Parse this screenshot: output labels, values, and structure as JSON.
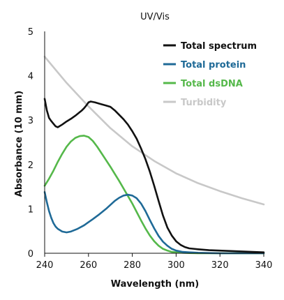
{
  "chart_data": {
    "type": "line",
    "title": "UV/Vis",
    "xlabel": "Wavelength (nm)",
    "ylabel": "Absorbance (10 mm)",
    "xlim": [
      240,
      340
    ],
    "ylim": [
      0,
      5
    ],
    "xticks": [
      240,
      260,
      280,
      300,
      320,
      340
    ],
    "yticks": [
      0,
      1,
      2,
      3,
      4,
      5
    ],
    "grid": false,
    "legend_position": "top-right",
    "series": [
      {
        "name": "Total spectrum",
        "color": "#111111",
        "x": [
          240,
          241,
          242,
          243,
          244,
          245,
          246,
          248,
          250,
          252,
          254,
          256,
          257,
          258,
          259,
          260,
          261,
          262,
          263,
          265,
          268,
          270,
          272,
          274,
          276,
          278,
          280,
          282,
          284,
          286,
          288,
          290,
          292,
          294,
          296,
          298,
          300,
          302,
          304,
          306,
          308,
          310,
          315,
          320,
          325,
          330,
          335,
          340
        ],
        "y": [
          3.48,
          3.22,
          3.05,
          2.98,
          2.92,
          2.86,
          2.84,
          2.9,
          2.97,
          3.03,
          3.1,
          3.18,
          3.22,
          3.27,
          3.33,
          3.4,
          3.42,
          3.41,
          3.4,
          3.37,
          3.33,
          3.3,
          3.22,
          3.12,
          3.02,
          2.9,
          2.75,
          2.58,
          2.36,
          2.12,
          1.84,
          1.52,
          1.18,
          0.85,
          0.58,
          0.4,
          0.27,
          0.19,
          0.14,
          0.11,
          0.1,
          0.09,
          0.07,
          0.06,
          0.05,
          0.04,
          0.03,
          0.02
        ]
      },
      {
        "name": "Total protein",
        "color": "#1f6a97",
        "x": [
          240,
          241,
          242,
          243,
          244,
          245,
          246,
          248,
          250,
          252,
          255,
          258,
          260,
          262,
          265,
          268,
          270,
          272,
          274,
          276,
          278,
          280,
          282,
          284,
          286,
          288,
          290,
          292,
          294,
          296,
          298,
          300,
          303,
          306,
          310,
          315,
          320,
          330,
          340
        ],
        "y": [
          1.38,
          1.15,
          0.95,
          0.8,
          0.68,
          0.6,
          0.55,
          0.49,
          0.47,
          0.49,
          0.55,
          0.63,
          0.7,
          0.77,
          0.88,
          1.0,
          1.09,
          1.18,
          1.25,
          1.3,
          1.32,
          1.3,
          1.24,
          1.12,
          0.95,
          0.75,
          0.56,
          0.39,
          0.26,
          0.17,
          0.1,
          0.06,
          0.03,
          0.02,
          0.01,
          0.005,
          0.0,
          0.0,
          0.0
        ]
      },
      {
        "name": "Total dsDNA",
        "color": "#55b84a",
        "x": [
          240,
          242,
          244,
          246,
          248,
          250,
          252,
          254,
          256,
          258,
          260,
          262,
          264,
          266,
          268,
          270,
          272,
          274,
          276,
          278,
          280,
          282,
          284,
          286,
          288,
          290,
          292,
          294,
          296,
          298,
          300,
          303,
          306,
          310,
          315,
          320,
          330,
          340
        ],
        "y": [
          1.52,
          1.68,
          1.86,
          2.06,
          2.24,
          2.4,
          2.52,
          2.6,
          2.64,
          2.65,
          2.62,
          2.53,
          2.4,
          2.25,
          2.1,
          1.95,
          1.79,
          1.63,
          1.46,
          1.29,
          1.12,
          0.93,
          0.74,
          0.56,
          0.4,
          0.27,
          0.17,
          0.1,
          0.06,
          0.03,
          0.02,
          0.01,
          0.005,
          0.0,
          0.0,
          0.0,
          0.0,
          0.0
        ]
      },
      {
        "name": "Turbidity",
        "color": "#c8c8c8",
        "x": [
          240,
          250,
          260,
          270,
          280,
          290,
          300,
          310,
          320,
          330,
          340
        ],
        "y": [
          4.43,
          3.84,
          3.31,
          2.82,
          2.41,
          2.08,
          1.8,
          1.58,
          1.4,
          1.24,
          1.1
        ]
      }
    ]
  }
}
